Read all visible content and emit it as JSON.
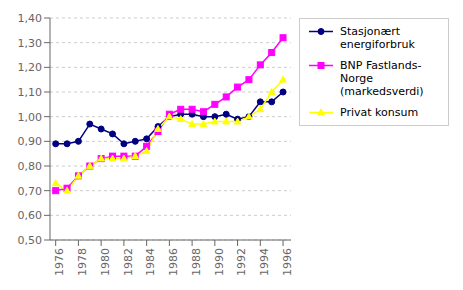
{
  "chart_data": {
    "type": "line",
    "x": [
      1976,
      1977,
      1978,
      1979,
      1980,
      1981,
      1982,
      1983,
      1984,
      1985,
      1986,
      1987,
      1988,
      1989,
      1990,
      1991,
      1992,
      1993,
      1994,
      1995,
      1996
    ],
    "xlim": [
      1975.5,
      1996.7
    ],
    "xticks": [
      1976,
      1978,
      1980,
      1982,
      1984,
      1986,
      1988,
      1990,
      1992,
      1994,
      1996
    ],
    "ylim": [
      0.5,
      1.4
    ],
    "yticks": [
      {
        "value": 0.5,
        "label": "0,50"
      },
      {
        "value": 0.6,
        "label": "0,60"
      },
      {
        "value": 0.7,
        "label": "0,70"
      },
      {
        "value": 0.8,
        "label": "0,80"
      },
      {
        "value": 0.9,
        "label": "0,90"
      },
      {
        "value": 1.0,
        "label": "1,00"
      },
      {
        "value": 1.1,
        "label": "1,10"
      },
      {
        "value": 1.2,
        "label": "1,20"
      },
      {
        "value": 1.3,
        "label": "1,30"
      },
      {
        "value": 1.4,
        "label": "1,40"
      }
    ],
    "grid": true,
    "legend": "right",
    "series": [
      {
        "name": "Stasjonært energiforbruk",
        "color": "#000080",
        "marker": "circle",
        "values": [
          0.89,
          0.89,
          0.9,
          0.97,
          0.95,
          0.93,
          0.89,
          0.9,
          0.91,
          0.96,
          1.0,
          1.01,
          1.01,
          1.0,
          1.0,
          1.01,
          0.99,
          1.0,
          1.06,
          1.06,
          1.1
        ]
      },
      {
        "name": "BNP Fastlands-Norge\n(markedsverdi)",
        "color": "#FF00FF",
        "marker": "square",
        "values": [
          0.7,
          0.71,
          0.76,
          0.8,
          0.83,
          0.84,
          0.84,
          0.84,
          0.88,
          0.94,
          1.01,
          1.03,
          1.03,
          1.02,
          1.05,
          1.08,
          1.12,
          1.15,
          1.21,
          1.26,
          1.32
        ]
      },
      {
        "name": "Privat konsum",
        "color": "#FFFF00",
        "marker": "triangle",
        "values": [
          0.73,
          0.7,
          0.76,
          0.8,
          0.83,
          0.83,
          0.83,
          0.84,
          0.86,
          0.95,
          1.0,
          0.99,
          0.97,
          0.97,
          0.98,
          0.98,
          0.98,
          1.0,
          1.03,
          1.1,
          1.15
        ]
      }
    ]
  }
}
